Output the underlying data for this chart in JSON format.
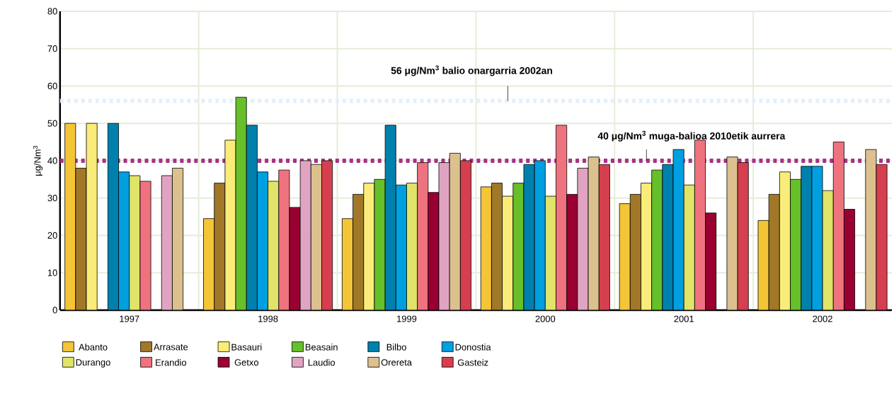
{
  "chart_data": {
    "type": "bar",
    "ylabel": "μg/Nm$^{3}$",
    "categories": [
      "1997",
      "1998",
      "1999",
      "2000",
      "2001",
      "2002"
    ],
    "ylim": [
      0,
      80
    ],
    "yticks": [
      0,
      10,
      20,
      30,
      40,
      50,
      60,
      70,
      80
    ],
    "grid": true,
    "legend": "bottom",
    "series": [
      {
        "name": "Abanto",
        "color": "#f3c537",
        "values": [
          50,
          24.5,
          24.5,
          33,
          28.5,
          24
        ]
      },
      {
        "name": "Arrasate",
        "color": "#a07828",
        "values": [
          38,
          34,
          31,
          34,
          31,
          31
        ]
      },
      {
        "name": "Basauri",
        "color": "#faec78",
        "values": [
          50,
          45.5,
          34,
          30.5,
          34,
          37
        ]
      },
      {
        "name": "Beasain",
        "color": "#67bf2a",
        "values": [
          null,
          57,
          35,
          34,
          37.5,
          35
        ]
      },
      {
        "name": "Bilbo",
        "color": "#0080ad",
        "values": [
          50,
          49.5,
          49.5,
          39,
          39,
          38.5
        ]
      },
      {
        "name": "Donostia",
        "color": "#009fe0",
        "values": [
          37,
          37,
          33.5,
          40,
          43,
          38.5
        ]
      },
      {
        "name": "Durango",
        "color": "#e0e468",
        "values": [
          36,
          34.5,
          34,
          30.5,
          33.5,
          32
        ]
      },
      {
        "name": "Erandio",
        "color": "#ee737e",
        "values": [
          34.5,
          37.5,
          39.5,
          49.5,
          45.5,
          45
        ]
      },
      {
        "name": "Getxo",
        "color": "#990031",
        "values": [
          null,
          27.5,
          31.5,
          31,
          26,
          27
        ]
      },
      {
        "name": "Laudio",
        "color": "#e0a4c2",
        "values": [
          36,
          40,
          39.5,
          38,
          null,
          null
        ]
      },
      {
        "name": "Orereta",
        "color": "#dcc18e",
        "values": [
          38,
          39,
          42,
          41,
          41,
          43
        ]
      },
      {
        "name": "Gasteiz",
        "color": "#d63f4f",
        "values": [
          null,
          40,
          40,
          39,
          39.5,
          39
        ]
      }
    ],
    "ref_lines": [
      {
        "axis": "y",
        "value": 56,
        "label": "56 μg/Nm$^{3}$ balio onargarria 2002an",
        "color": "#e3f0fb",
        "line_style": "dotted"
      },
      {
        "axis": "y",
        "value": 40,
        "label": "40 μg/Nm$^{3}$ muga-balioa 2010etik aurrera",
        "color": "#a83088",
        "line_style": "dotted"
      }
    ]
  }
}
